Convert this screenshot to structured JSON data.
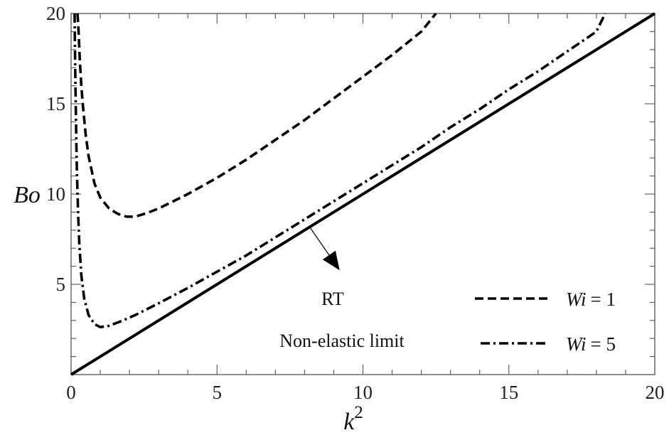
{
  "chart_data": {
    "type": "line",
    "xlabel": "k",
    "xlabel_sup": "2",
    "ylabel": "Bo",
    "xlim": [
      0,
      20
    ],
    "ylim": [
      0,
      20
    ],
    "x_ticks": [
      0,
      5,
      10,
      15,
      20
    ],
    "y_ticks": [
      5,
      10,
      15,
      20
    ],
    "grid": false,
    "frame": "box",
    "series": [
      {
        "name": "Wi = 1",
        "legend_prefix": "Wi",
        "legend_value": "= 1",
        "style": "dashed",
        "color": "#000000",
        "x": [
          0.22,
          0.25,
          0.3,
          0.35,
          0.4,
          0.5,
          0.6,
          0.8,
          1.0,
          1.3,
          1.6,
          1.9,
          2.2,
          2.6,
          3.0,
          3.5,
          4.0,
          5.0,
          6.0,
          7.0,
          8.0,
          9.0,
          10.0,
          11.0,
          12.0,
          12.5
        ],
        "y": [
          20.0,
          19.2,
          17.4,
          16.0,
          15.0,
          13.3,
          12.1,
          10.6,
          9.8,
          9.2,
          8.9,
          8.75,
          8.75,
          8.95,
          9.2,
          9.6,
          10.0,
          10.9,
          11.9,
          13.0,
          14.1,
          15.3,
          16.5,
          17.7,
          19.0,
          20.0
        ]
      },
      {
        "name": "Wi = 5",
        "legend_prefix": "Wi",
        "legend_value": "= 5",
        "style": "dash-dot",
        "color": "#000000",
        "x": [
          0.12,
          0.14,
          0.16,
          0.18,
          0.2,
          0.24,
          0.28,
          0.35,
          0.45,
          0.6,
          0.8,
          1.0,
          1.3,
          1.7,
          2.2,
          3.0,
          4.0,
          5.0,
          6.0,
          7.0,
          8.0,
          9.0,
          10.0,
          11.0,
          12.0,
          13.0,
          14.0,
          15.0,
          16.0,
          17.0,
          18.0,
          18.3
        ],
        "y": [
          20.0,
          17.2,
          14.8,
          12.8,
          11.2,
          8.9,
          7.3,
          5.5,
          4.2,
          3.3,
          2.8,
          2.63,
          2.7,
          2.95,
          3.3,
          3.95,
          4.8,
          5.7,
          6.6,
          7.6,
          8.6,
          9.6,
          10.6,
          11.6,
          12.6,
          13.7,
          14.7,
          15.8,
          16.8,
          17.9,
          19.0,
          20.0
        ]
      },
      {
        "name": "",
        "style": "solid",
        "color": "#000000",
        "x": [
          0,
          20
        ],
        "y": [
          0,
          20
        ]
      }
    ],
    "annotations": [
      {
        "text": "RT"
      },
      {
        "text": "Non-elastic limit"
      }
    ],
    "legend_placement": "bottom-right"
  }
}
